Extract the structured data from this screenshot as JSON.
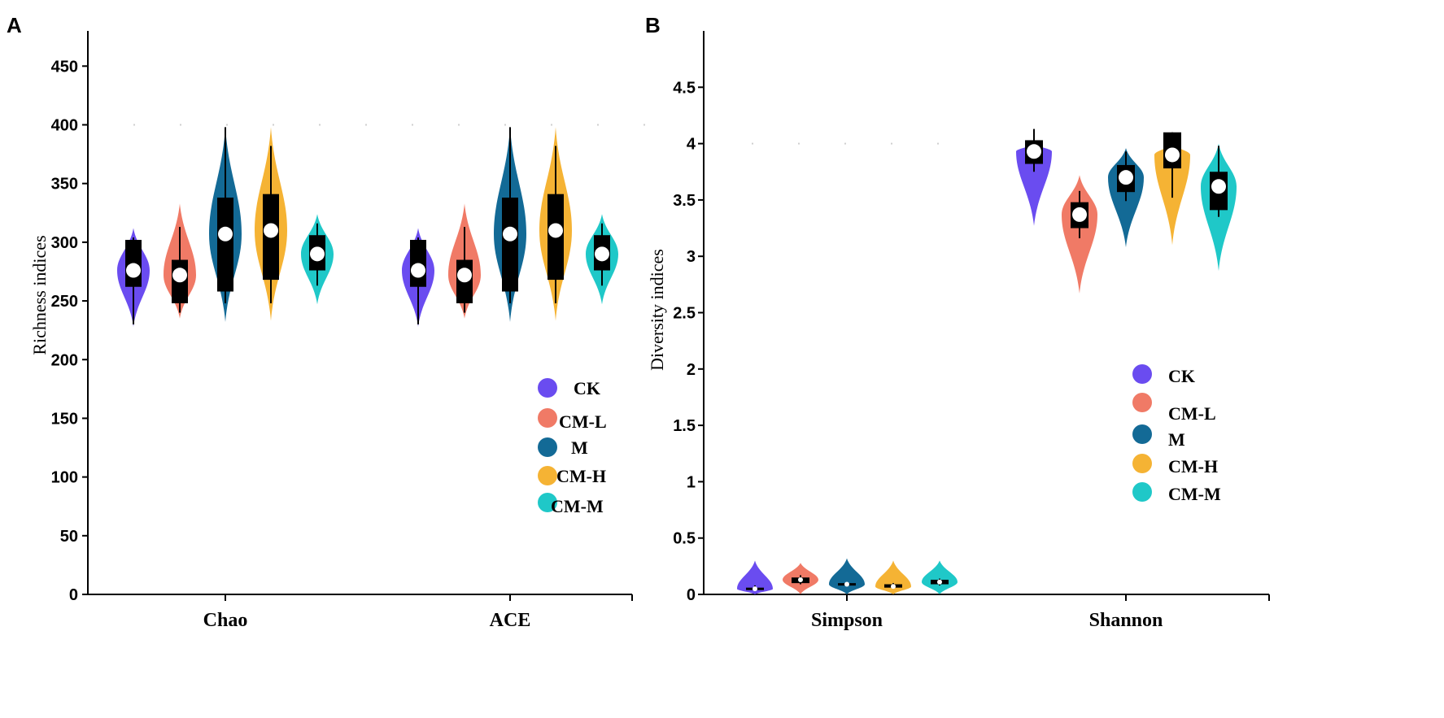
{
  "groups": [
    "CK",
    "CM-L",
    "M",
    "CM-H",
    "CM-M"
  ],
  "colors": {
    "CK": "#6a4cf0",
    "CM-L": "#f07a66",
    "M": "#136a96",
    "CM-H": "#f5b334",
    "CM-M": "#1fc8c8"
  },
  "chart_data": [
    {
      "panel": "A",
      "type": "violin",
      "ylabel": "Richness indices",
      "ylim": [
        0,
        480
      ],
      "yticks": [
        0,
        50,
        100,
        150,
        200,
        250,
        300,
        350,
        400,
        450
      ],
      "categories": [
        "Chao",
        "ACE"
      ],
      "reference_line": 400,
      "series": [
        {
          "name": "CK",
          "category": "Chao",
          "median": 276,
          "q1": 262,
          "q3": 302,
          "whisker_low": 230,
          "whisker_high": 304,
          "min": 228,
          "max": 312
        },
        {
          "name": "CM-L",
          "category": "Chao",
          "median": 272,
          "q1": 248,
          "q3": 285,
          "whisker_low": 240,
          "whisker_high": 313,
          "min": 235,
          "max": 333
        },
        {
          "name": "M",
          "category": "Chao",
          "median": 307,
          "q1": 258,
          "q3": 338,
          "whisker_low": 248,
          "whisker_high": 398,
          "min": 232,
          "max": 398
        },
        {
          "name": "CM-H",
          "category": "Chao",
          "median": 310,
          "q1": 268,
          "q3": 341,
          "whisker_low": 248,
          "whisker_high": 382,
          "min": 233,
          "max": 398
        },
        {
          "name": "CM-M",
          "category": "Chao",
          "median": 290,
          "q1": 276,
          "q3": 306,
          "whisker_low": 263,
          "whisker_high": 316,
          "min": 247,
          "max": 324
        },
        {
          "name": "CK",
          "category": "ACE",
          "median": 276,
          "q1": 262,
          "q3": 302,
          "whisker_low": 230,
          "whisker_high": 304,
          "min": 228,
          "max": 312
        },
        {
          "name": "CM-L",
          "category": "ACE",
          "median": 272,
          "q1": 248,
          "q3": 285,
          "whisker_low": 240,
          "whisker_high": 313,
          "min": 235,
          "max": 333
        },
        {
          "name": "M",
          "category": "ACE",
          "median": 307,
          "q1": 258,
          "q3": 338,
          "whisker_low": 248,
          "whisker_high": 398,
          "min": 232,
          "max": 398
        },
        {
          "name": "CM-H",
          "category": "ACE",
          "median": 310,
          "q1": 268,
          "q3": 341,
          "whisker_low": 248,
          "whisker_high": 382,
          "min": 233,
          "max": 398
        },
        {
          "name": "CM-M",
          "category": "ACE",
          "median": 290,
          "q1": 276,
          "q3": 306,
          "whisker_low": 263,
          "whisker_high": 316,
          "min": 247,
          "max": 324
        }
      ]
    },
    {
      "panel": "B",
      "type": "violin",
      "ylabel": "Diversity indices",
      "ylim": [
        0,
        5
      ],
      "yticks": [
        0,
        0.5,
        1,
        1.5,
        2,
        2.5,
        3,
        3.5,
        4,
        4.5
      ],
      "categories": [
        "Simpson",
        "Shannon"
      ],
      "reference_line": 4,
      "series": [
        {
          "name": "CK",
          "category": "Simpson",
          "median": 0.05,
          "q1": 0.04,
          "q3": 0.06,
          "whisker_low": 0.03,
          "whisker_high": 0.08,
          "min": 0.0,
          "max": 0.3
        },
        {
          "name": "CM-L",
          "category": "Simpson",
          "median": 0.13,
          "q1": 0.1,
          "q3": 0.15,
          "whisker_low": 0.09,
          "whisker_high": 0.17,
          "min": 0.0,
          "max": 0.28
        },
        {
          "name": "M",
          "category": "Simpson",
          "median": 0.09,
          "q1": 0.08,
          "q3": 0.1,
          "whisker_low": 0.07,
          "whisker_high": 0.11,
          "min": 0.0,
          "max": 0.32
        },
        {
          "name": "CM-H",
          "category": "Simpson",
          "median": 0.07,
          "q1": 0.06,
          "q3": 0.09,
          "whisker_low": 0.05,
          "whisker_high": 0.1,
          "min": 0.0,
          "max": 0.3
        },
        {
          "name": "CM-M",
          "category": "Simpson",
          "median": 0.11,
          "q1": 0.09,
          "q3": 0.13,
          "whisker_low": 0.08,
          "whisker_high": 0.14,
          "min": 0.0,
          "max": 0.3
        },
        {
          "name": "CK",
          "category": "Shannon",
          "median": 3.93,
          "q1": 3.82,
          "q3": 4.03,
          "whisker_low": 3.75,
          "whisker_high": 4.13,
          "min": 3.27,
          "max": 4.0
        },
        {
          "name": "CM-L",
          "category": "Shannon",
          "median": 3.37,
          "q1": 3.25,
          "q3": 3.48,
          "whisker_low": 3.16,
          "whisker_high": 3.58,
          "min": 2.67,
          "max": 3.72
        },
        {
          "name": "M",
          "category": "Shannon",
          "median": 3.7,
          "q1": 3.57,
          "q3": 3.81,
          "whisker_low": 3.49,
          "whisker_high": 3.93,
          "min": 3.08,
          "max": 3.96
        },
        {
          "name": "CM-H",
          "category": "Shannon",
          "median": 3.9,
          "q1": 3.78,
          "q3": 4.1,
          "whisker_low": 3.52,
          "whisker_high": 4.1,
          "min": 3.1,
          "max": 4.0
        },
        {
          "name": "CM-M",
          "category": "Shannon",
          "median": 3.62,
          "q1": 3.41,
          "q3": 3.75,
          "whisker_low": 3.35,
          "whisker_high": 3.98,
          "min": 2.87,
          "max": 4.0
        }
      ]
    }
  ]
}
